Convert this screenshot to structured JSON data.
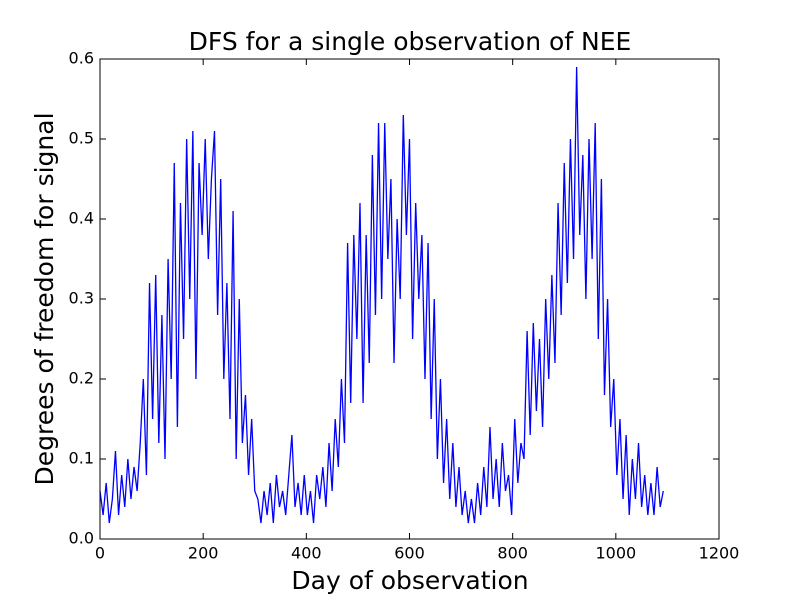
{
  "chart_data": {
    "type": "line",
    "title": "DFS for a single observation of NEE",
    "xlabel": "Day of observation",
    "ylabel": "Degrees of freedom for signal",
    "color": "#0000ff",
    "xlim": [
      0,
      1200
    ],
    "xticks": [
      0,
      200,
      400,
      600,
      800,
      1000,
      1200
    ],
    "ylim": [
      0,
      0.6
    ],
    "yticks": [
      {
        "value": 0,
        "label": "0.0"
      },
      0.1,
      0.2,
      0.3,
      0.4,
      0.5,
      0.6
    ],
    "x": [
      0,
      6,
      12,
      18,
      24,
      30,
      36,
      42,
      48,
      54,
      60,
      66,
      72,
      78,
      84,
      90,
      96,
      102,
      108,
      114,
      120,
      126,
      132,
      138,
      144,
      150,
      156,
      162,
      168,
      174,
      180,
      186,
      192,
      198,
      204,
      210,
      216,
      222,
      228,
      234,
      240,
      246,
      252,
      258,
      264,
      270,
      276,
      282,
      288,
      294,
      300,
      306,
      312,
      318,
      324,
      330,
      336,
      342,
      348,
      354,
      360,
      366,
      372,
      378,
      384,
      390,
      396,
      402,
      408,
      414,
      420,
      426,
      432,
      438,
      444,
      450,
      456,
      462,
      468,
      474,
      480,
      486,
      492,
      498,
      504,
      510,
      516,
      522,
      528,
      534,
      540,
      546,
      552,
      558,
      564,
      570,
      576,
      582,
      588,
      594,
      600,
      606,
      612,
      618,
      624,
      630,
      636,
      642,
      648,
      654,
      660,
      666,
      672,
      678,
      684,
      690,
      696,
      702,
      708,
      714,
      720,
      726,
      732,
      738,
      744,
      750,
      756,
      762,
      768,
      774,
      780,
      786,
      792,
      798,
      804,
      810,
      816,
      822,
      828,
      834,
      840,
      846,
      852,
      858,
      864,
      870,
      876,
      882,
      888,
      894,
      900,
      906,
      912,
      918,
      924,
      930,
      936,
      942,
      948,
      954,
      960,
      966,
      972,
      978,
      984,
      990,
      996,
      1002,
      1008,
      1014,
      1020,
      1026,
      1032,
      1038,
      1044,
      1050,
      1056,
      1062,
      1068,
      1074,
      1080,
      1086,
      1092
    ],
    "values": [
      0.06,
      0.03,
      0.07,
      0.02,
      0.05,
      0.11,
      0.03,
      0.08,
      0.04,
      0.1,
      0.05,
      0.09,
      0.06,
      0.12,
      0.2,
      0.08,
      0.32,
      0.15,
      0.33,
      0.12,
      0.28,
      0.1,
      0.35,
      0.2,
      0.47,
      0.14,
      0.42,
      0.25,
      0.5,
      0.3,
      0.51,
      0.2,
      0.47,
      0.38,
      0.5,
      0.35,
      0.45,
      0.51,
      0.28,
      0.45,
      0.2,
      0.32,
      0.15,
      0.41,
      0.1,
      0.3,
      0.12,
      0.18,
      0.08,
      0.15,
      0.06,
      0.05,
      0.02,
      0.06,
      0.03,
      0.07,
      0.02,
      0.08,
      0.04,
      0.06,
      0.03,
      0.08,
      0.13,
      0.04,
      0.07,
      0.03,
      0.08,
      0.03,
      0.06,
      0.02,
      0.08,
      0.05,
      0.09,
      0.04,
      0.12,
      0.06,
      0.15,
      0.09,
      0.2,
      0.12,
      0.37,
      0.17,
      0.38,
      0.25,
      0.42,
      0.17,
      0.38,
      0.22,
      0.48,
      0.28,
      0.52,
      0.3,
      0.52,
      0.35,
      0.45,
      0.22,
      0.4,
      0.3,
      0.53,
      0.38,
      0.5,
      0.25,
      0.42,
      0.3,
      0.38,
      0.2,
      0.37,
      0.15,
      0.3,
      0.1,
      0.2,
      0.07,
      0.15,
      0.05,
      0.12,
      0.04,
      0.09,
      0.03,
      0.06,
      0.02,
      0.05,
      0.02,
      0.07,
      0.03,
      0.09,
      0.04,
      0.14,
      0.05,
      0.1,
      0.04,
      0.12,
      0.06,
      0.08,
      0.03,
      0.15,
      0.07,
      0.12,
      0.1,
      0.26,
      0.13,
      0.27,
      0.16,
      0.25,
      0.14,
      0.3,
      0.2,
      0.33,
      0.22,
      0.42,
      0.28,
      0.47,
      0.32,
      0.5,
      0.35,
      0.59,
      0.38,
      0.48,
      0.3,
      0.5,
      0.35,
      0.52,
      0.25,
      0.45,
      0.18,
      0.3,
      0.14,
      0.2,
      0.08,
      0.15,
      0.05,
      0.13,
      0.03,
      0.1,
      0.05,
      0.12,
      0.04,
      0.08,
      0.03,
      0.07,
      0.03,
      0.09,
      0.04,
      0.06
    ]
  }
}
